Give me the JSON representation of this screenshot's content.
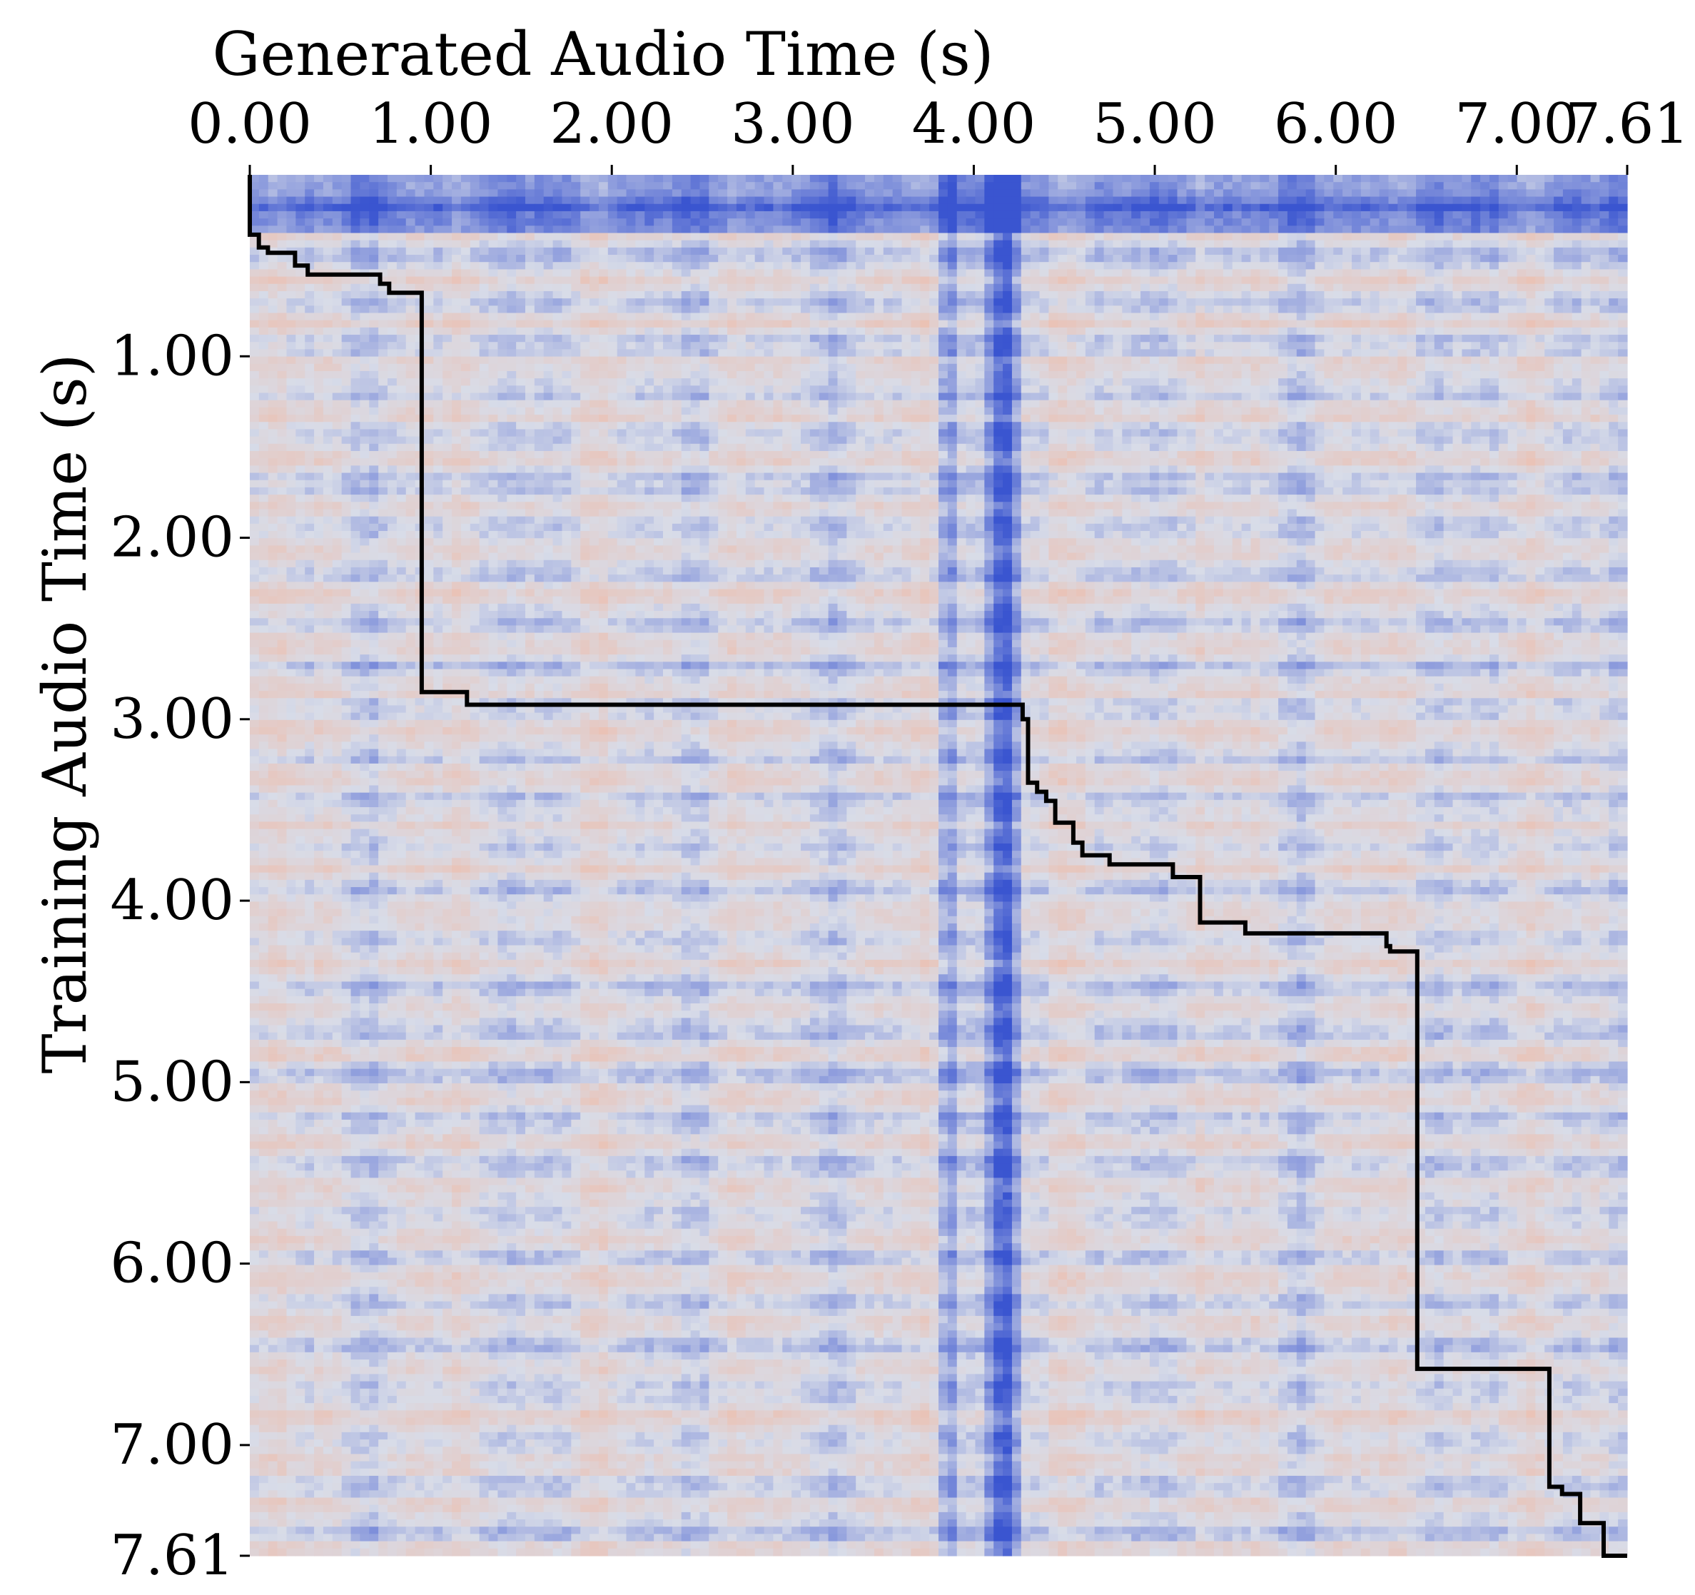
{
  "chart_data": {
    "type": "heatmap",
    "title": "",
    "xlabel": "Generated Audio Time (s)",
    "ylabel": "Training Audio Time (s)",
    "x_axis_position": "top",
    "xlim": [
      0,
      7.61
    ],
    "ylim": [
      0,
      7.61
    ],
    "y_inverted": true,
    "x_tick_labels": [
      "0.00",
      "1.00",
      "2.00",
      "3.00",
      "4.00",
      "5.00",
      "6.00",
      "7.00",
      "7.61"
    ],
    "x_ticks": [
      0,
      1,
      2,
      3,
      4,
      5,
      6,
      7,
      7.61
    ],
    "y_tick_labels": [
      "1.00",
      "2.00",
      "3.00",
      "4.00",
      "5.00",
      "6.00",
      "7.00",
      "7.61"
    ],
    "y_ticks": [
      1,
      2,
      3,
      4,
      5,
      6,
      7,
      7.61
    ],
    "colormap": "coolwarm",
    "colors": {
      "low": "#3a55d0",
      "mid": "#d8dce8",
      "high": "#f4b49a"
    },
    "high_similarity_generated_times_s": [
      3.85,
      4.12,
      4.2
    ],
    "alignment_path": {
      "color": "#000000",
      "points": [
        [
          0.0,
          0.0
        ],
        [
          0.0,
          0.33
        ],
        [
          0.05,
          0.33
        ],
        [
          0.05,
          0.4
        ],
        [
          0.1,
          0.4
        ],
        [
          0.1,
          0.43
        ],
        [
          0.25,
          0.43
        ],
        [
          0.25,
          0.5
        ],
        [
          0.32,
          0.5
        ],
        [
          0.32,
          0.55
        ],
        [
          0.72,
          0.55
        ],
        [
          0.72,
          0.6
        ],
        [
          0.77,
          0.6
        ],
        [
          0.77,
          0.65
        ],
        [
          0.95,
          0.65
        ],
        [
          0.95,
          2.85
        ],
        [
          1.2,
          2.85
        ],
        [
          1.2,
          2.92
        ],
        [
          4.27,
          2.92
        ],
        [
          4.27,
          3.0
        ],
        [
          4.3,
          3.0
        ],
        [
          4.3,
          3.35
        ],
        [
          4.35,
          3.35
        ],
        [
          4.35,
          3.4
        ],
        [
          4.4,
          3.4
        ],
        [
          4.4,
          3.45
        ],
        [
          4.45,
          3.45
        ],
        [
          4.45,
          3.57
        ],
        [
          4.55,
          3.57
        ],
        [
          4.55,
          3.68
        ],
        [
          4.6,
          3.68
        ],
        [
          4.6,
          3.75
        ],
        [
          4.75,
          3.75
        ],
        [
          4.75,
          3.8
        ],
        [
          5.1,
          3.8
        ],
        [
          5.1,
          3.87
        ],
        [
          5.25,
          3.87
        ],
        [
          5.25,
          4.12
        ],
        [
          5.5,
          4.12
        ],
        [
          5.5,
          4.18
        ],
        [
          6.28,
          4.18
        ],
        [
          6.28,
          4.25
        ],
        [
          6.3,
          4.25
        ],
        [
          6.3,
          4.28
        ],
        [
          6.45,
          4.28
        ],
        [
          6.45,
          6.58
        ],
        [
          7.18,
          6.58
        ],
        [
          7.18,
          7.23
        ],
        [
          7.25,
          7.23
        ],
        [
          7.25,
          7.27
        ],
        [
          7.35,
          7.27
        ],
        [
          7.35,
          7.43
        ],
        [
          7.48,
          7.43
        ],
        [
          7.48,
          7.61
        ],
        [
          7.61,
          7.61
        ]
      ]
    }
  }
}
